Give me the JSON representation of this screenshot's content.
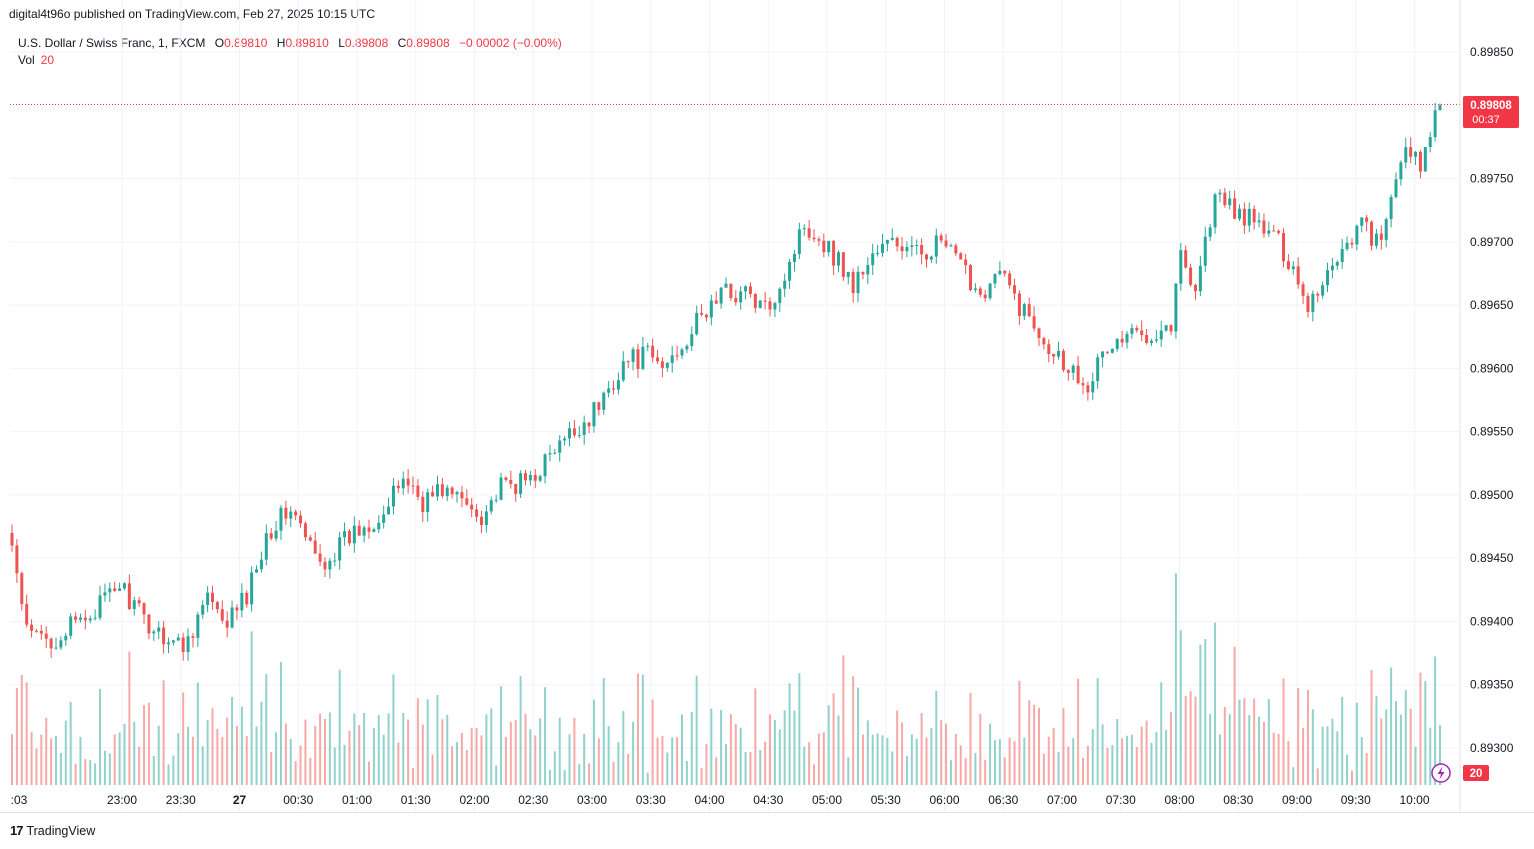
{
  "header": {
    "published": "digital4t96o published on TradingView.com, Feb 27, 2025 10:15 UTC"
  },
  "legend": {
    "symbol": "U.S. Dollar / Swiss Franc, 1, FXCM",
    "o_label": "O",
    "o_value": "0.89810",
    "h_label": "H",
    "h_value": "0.89810",
    "l_label": "L",
    "l_value": "0.89808",
    "c_label": "C",
    "c_value": "0.89808",
    "change": "−0.00002 (−0.00%)",
    "vol_label": "Vol",
    "vol_value": "20"
  },
  "price_badge": {
    "price": "0.89808",
    "countdown": "00:37"
  },
  "volume_badge": "20",
  "footer": {
    "brand": "TradingView"
  },
  "colors": {
    "up": "#26a69a",
    "down": "#ef5350",
    "badge": "#f23645",
    "grid": "#f0f3fa",
    "text": "#131722"
  },
  "chart_data": {
    "type": "candlestick",
    "symbol": "USDCHF",
    "title": "U.S. Dollar / Swiss Franc, 1, FXCM",
    "timeframe": "1 minute",
    "y_range": [
      0.89275,
      0.89875
    ],
    "y_ticks": [
      "0.89850",
      "0.89750",
      "0.89700",
      "0.89650",
      "0.89600",
      "0.89550",
      "0.89500",
      "0.89450",
      "0.89400",
      "0.89350",
      "0.89300"
    ],
    "x_ticks": [
      ":03",
      "23:00",
      "23:30",
      "27",
      "00:30",
      "01:00",
      "01:30",
      "02:00",
      "02:30",
      "03:00",
      "03:30",
      "04:00",
      "04:30",
      "05:00",
      "05:30",
      "06:00",
      "06:30",
      "07:00",
      "07:30",
      "08:00",
      "08:30",
      "09:00",
      "09:30",
      "10:00"
    ],
    "last_price": 0.89808,
    "close_path": [
      [
        0,
        0.8946
      ],
      [
        3,
        0.8939
      ],
      [
        8,
        0.89385
      ],
      [
        14,
        0.894
      ],
      [
        20,
        0.8942
      ],
      [
        22,
        0.8943
      ],
      [
        27,
        0.894
      ],
      [
        35,
        0.8938
      ],
      [
        40,
        0.8942
      ],
      [
        43,
        0.89395
      ],
      [
        48,
        0.8942
      ],
      [
        52,
        0.8947
      ],
      [
        57,
        0.8949
      ],
      [
        60,
        0.89465
      ],
      [
        63,
        0.89445
      ],
      [
        70,
        0.8947
      ],
      [
        77,
        0.8949
      ],
      [
        80,
        0.89515
      ],
      [
        84,
        0.89495
      ],
      [
        88,
        0.89505
      ],
      [
        92,
        0.89495
      ],
      [
        96,
        0.89485
      ],
      [
        100,
        0.89505
      ],
      [
        105,
        0.8951
      ],
      [
        110,
        0.8953
      ],
      [
        115,
        0.8955
      ],
      [
        120,
        0.8957
      ],
      [
        125,
        0.89605
      ],
      [
        130,
        0.8961
      ],
      [
        133,
        0.896
      ],
      [
        137,
        0.8962
      ],
      [
        141,
        0.8964
      ],
      [
        145,
        0.8966
      ],
      [
        150,
        0.8966
      ],
      [
        154,
        0.89645
      ],
      [
        158,
        0.89675
      ],
      [
        162,
        0.89715
      ],
      [
        166,
        0.897
      ],
      [
        170,
        0.8968
      ],
      [
        172,
        0.89665
      ],
      [
        176,
        0.8969
      ],
      [
        180,
        0.897
      ],
      [
        185,
        0.8969
      ],
      [
        190,
        0.897
      ],
      [
        194,
        0.8968
      ],
      [
        198,
        0.8966
      ],
      [
        202,
        0.89675
      ],
      [
        206,
        0.8965
      ],
      [
        210,
        0.8963
      ],
      [
        214,
        0.8961
      ],
      [
        218,
        0.89595
      ],
      [
        220,
        0.8959
      ],
      [
        224,
        0.89615
      ],
      [
        228,
        0.89625
      ],
      [
        233,
        0.8963
      ],
      [
        237,
        0.89635
      ],
      [
        239,
        0.8969
      ],
      [
        242,
        0.89665
      ],
      [
        246,
        0.89735
      ],
      [
        250,
        0.89725
      ],
      [
        254,
        0.89715
      ],
      [
        258,
        0.89705
      ],
      [
        262,
        0.8968
      ],
      [
        265,
        0.8965
      ],
      [
        268,
        0.8967
      ],
      [
        272,
        0.89695
      ],
      [
        276,
        0.89715
      ],
      [
        280,
        0.89695
      ],
      [
        284,
        0.8977
      ],
      [
        288,
        0.8976
      ],
      [
        292,
        0.89808
      ]
    ],
    "volume_range": [
      0,
      250
    ],
    "volume_note": "Volume histogram at bottom, bar color follows candle direction"
  }
}
